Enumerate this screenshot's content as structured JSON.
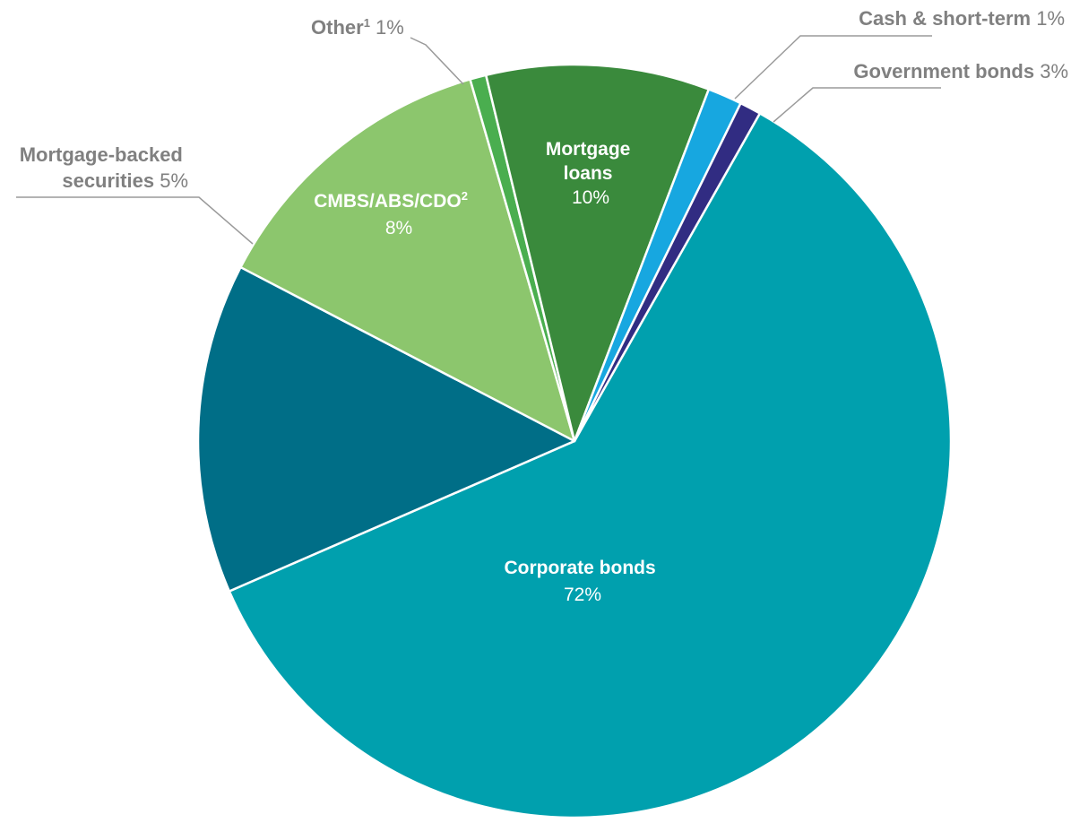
{
  "chart_data": {
    "type": "pie",
    "slices": [
      {
        "id": "corporate",
        "name": "Corporate bonds",
        "value": 72,
        "pct_label": "72%",
        "color": "#00A0AE"
      },
      {
        "id": "mbs",
        "name_lines": [
          "Mortgage-backed",
          "securities"
        ],
        "value": 5,
        "pct_label": "5%",
        "color": "#006E87"
      },
      {
        "id": "cmbs",
        "name": "CMBS/ABS/CDO",
        "sup": "2",
        "value": 8,
        "pct_label": "8%",
        "color": "#8CC66D"
      },
      {
        "id": "other",
        "name": "Other",
        "sup": "1",
        "value": 1,
        "pct_label": "1%",
        "color": "#4AAE4F"
      },
      {
        "id": "mortgage",
        "name_lines": [
          "Mortgage",
          "loans"
        ],
        "value": 10,
        "pct_label": "10%",
        "color": "#3A8A3C"
      },
      {
        "id": "cash",
        "name": "Cash & short-term",
        "value": 1,
        "pct_label": "1%",
        "color": "#17A7E0"
      },
      {
        "id": "government",
        "name": "Government bonds",
        "value": 3,
        "pct_label": "3%",
        "color": "#312C82"
      }
    ]
  }
}
